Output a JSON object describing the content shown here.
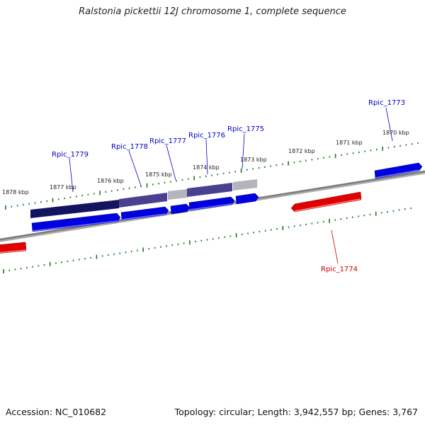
{
  "header": {
    "title": "Ralstonia pickettii 12J chromosome 1, complete sequence"
  },
  "footer": {
    "accession": "Accession: NC_010682",
    "summary": "Topology: circular; Length: 3,942,557 bp; Genes: 3,767"
  },
  "scale": {
    "tick_color": "#1a7a1a",
    "labels": [
      {
        "text": "1878 kbp"
      },
      {
        "text": "1877 kbp"
      },
      {
        "text": "1876 kbp"
      },
      {
        "text": "1875 kbp"
      },
      {
        "text": "1874 kbp"
      },
      {
        "text": "1873 kbp"
      },
      {
        "text": "1872 kbp"
      },
      {
        "text": "1871 kbp"
      },
      {
        "text": "1870 kbp"
      }
    ]
  },
  "genes": {
    "forward_color": "#0000e0",
    "reverse_color": "#dd0000",
    "labels": [
      {
        "text": "Rpic_1779",
        "strand": "forward"
      },
      {
        "text": "Rpic_1778",
        "strand": "forward"
      },
      {
        "text": "Rpic_1777",
        "strand": "forward"
      },
      {
        "text": "Rpic_1776",
        "strand": "forward"
      },
      {
        "text": "Rpic_1775",
        "strand": "forward"
      },
      {
        "text": "Rpic_1773",
        "strand": "forward"
      },
      {
        "text": "Rpic_1774",
        "strand": "reverse"
      }
    ]
  },
  "colors": {
    "backbone": "#808080",
    "homology_dark": "#1a1a70",
    "homology_mid": "#5a4ea0",
    "homology_grey": "#b0b0b8"
  }
}
